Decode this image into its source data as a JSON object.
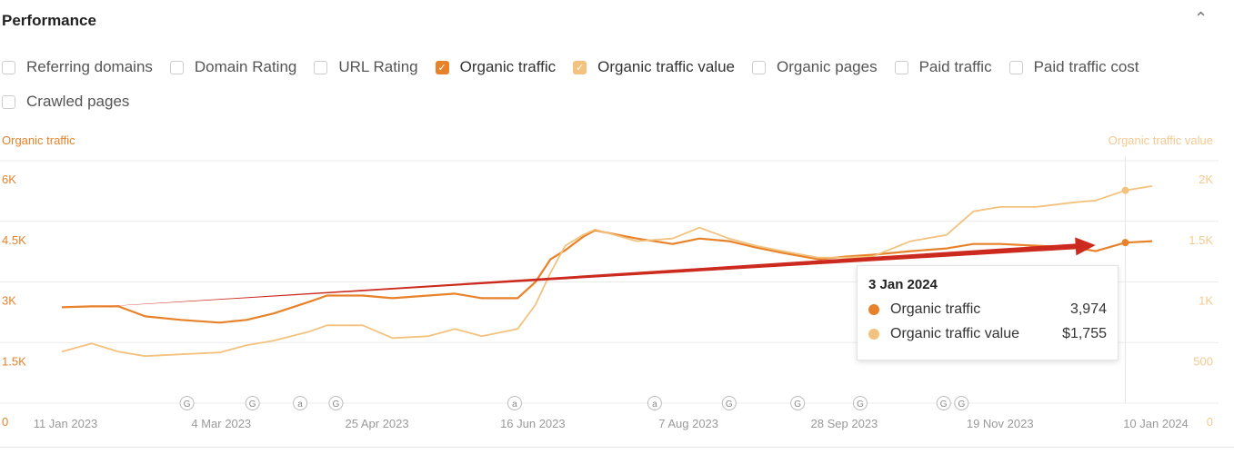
{
  "header": {
    "title": "Performance",
    "collapse_icon": "chevron-up-icon"
  },
  "metrics": [
    {
      "label": "Referring domains",
      "checked": false
    },
    {
      "label": "Domain Rating",
      "checked": false
    },
    {
      "label": "URL Rating",
      "checked": false
    },
    {
      "label": "Organic traffic",
      "checked": true,
      "color": "#e8822a"
    },
    {
      "label": "Organic traffic value",
      "checked": true,
      "color": "#f2c27e"
    },
    {
      "label": "Organic pages",
      "checked": false
    },
    {
      "label": "Paid traffic",
      "checked": false
    },
    {
      "label": "Paid traffic cost",
      "checked": false
    },
    {
      "label": "Crawled pages",
      "checked": false
    }
  ],
  "chart_data": {
    "type": "line",
    "y_left_label": "Organic traffic",
    "y_right_label": "Organic traffic value",
    "y_left_ticks": [
      "0",
      "1.5K",
      "3K",
      "4.5K",
      "6K"
    ],
    "y_right_ticks": [
      "0",
      "500",
      "1K",
      "1.5K",
      "2K"
    ],
    "ylim_left": [
      0,
      6000
    ],
    "ylim_right": [
      0,
      2000
    ],
    "x_ticks": [
      "11 Jan 2023",
      "4 Mar 2023",
      "25 Apr 2023",
      "16 Jun 2023",
      "7 Aug 2023",
      "28 Sep 2023",
      "19 Nov 2023",
      "10 Jan 2024"
    ],
    "xlim": [
      "2023-01-11",
      "2024-01-12"
    ],
    "grid": true,
    "x": [
      "2023-01-11",
      "2023-01-21",
      "2023-01-30",
      "2023-02-08",
      "2023-02-20",
      "2023-03-05",
      "2023-03-14",
      "2023-03-23",
      "2023-04-04",
      "2023-04-10",
      "2023-04-22",
      "2023-05-02",
      "2023-05-14",
      "2023-05-23",
      "2023-06-01",
      "2023-06-13",
      "2023-06-19",
      "2023-06-24",
      "2023-06-29",
      "2023-07-05",
      "2023-07-09",
      "2023-07-23",
      "2023-08-04",
      "2023-08-13",
      "2023-08-23",
      "2023-09-01",
      "2023-09-10",
      "2023-09-22",
      "2023-10-01",
      "2023-10-10",
      "2023-10-23",
      "2023-11-04",
      "2023-11-13",
      "2023-11-22",
      "2023-12-04",
      "2023-12-17",
      "2023-12-24",
      "2024-01-03",
      "2024-01-12"
    ],
    "series": [
      {
        "name": "Organic traffic",
        "axis": "left",
        "color": "#e8822a",
        "values": [
          2373,
          2396,
          2396,
          2149,
          2060,
          1993,
          2060,
          2217,
          2507,
          2664,
          2664,
          2597,
          2664,
          2709,
          2597,
          2597,
          3000,
          3560,
          3784,
          4119,
          4276,
          4075,
          3940,
          4075,
          4008,
          3851,
          3717,
          3560,
          3627,
          3672,
          3761,
          3829,
          3940,
          3940,
          3896,
          3851,
          3761,
          3974,
          4008
        ]
      },
      {
        "name": "Organic traffic value",
        "axis": "right",
        "color": "#f2c27e",
        "values": [
          425,
          492,
          425,
          388,
          403,
          418,
          478,
          515,
          590,
          642,
          642,
          537,
          552,
          612,
          552,
          612,
          813,
          1075,
          1299,
          1388,
          1433,
          1336,
          1358,
          1448,
          1358,
          1299,
          1254,
          1201,
          1201,
          1209,
          1336,
          1388,
          1582,
          1619,
          1619,
          1657,
          1672,
          1755,
          1791
        ]
      }
    ],
    "annotations": [
      {
        "date": "2023-02-22",
        "icon": "G"
      },
      {
        "date": "2023-03-16",
        "icon": "G"
      },
      {
        "date": "2023-04-01",
        "icon": "a"
      },
      {
        "date": "2023-04-13",
        "icon": "G"
      },
      {
        "date": "2023-06-12",
        "icon": "a"
      },
      {
        "date": "2023-07-29",
        "icon": "a"
      },
      {
        "date": "2023-08-23",
        "icon": "G"
      },
      {
        "date": "2023-09-15",
        "icon": "G"
      },
      {
        "date": "2023-10-06",
        "icon": "G"
      },
      {
        "date": "2023-11-03",
        "icon": "G"
      },
      {
        "date": "2023-11-09",
        "icon": "G"
      }
    ],
    "tooltip": {
      "date": "3 Jan 2024",
      "rows": [
        {
          "label": "Organic traffic",
          "value": "3,974",
          "color": "#e8822a"
        },
        {
          "label": "Organic traffic value",
          "value": "$1,755",
          "color": "#f2c27e"
        }
      ]
    },
    "overlay_arrow": {
      "color": "#cc2a1e",
      "from_date": "2023-01-18",
      "to_date": "2023-12-24"
    }
  }
}
